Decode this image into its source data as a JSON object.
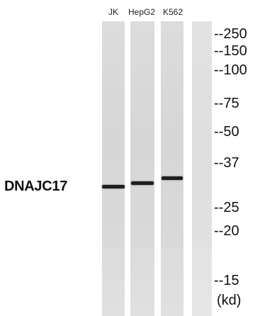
{
  "lanes": [
    {
      "label": "JK",
      "band_kda": 31
    },
    {
      "label": "HepG2",
      "band_kda": 31
    },
    {
      "label": "K562",
      "band_kda": 31
    }
  ],
  "protein_label": "DNAJC17",
  "mw_markers": [
    "--250",
    "--150",
    "--100",
    "--75",
    "--50",
    "--37",
    "--25",
    "--20",
    "--15"
  ],
  "unit_label": "(kd)"
}
